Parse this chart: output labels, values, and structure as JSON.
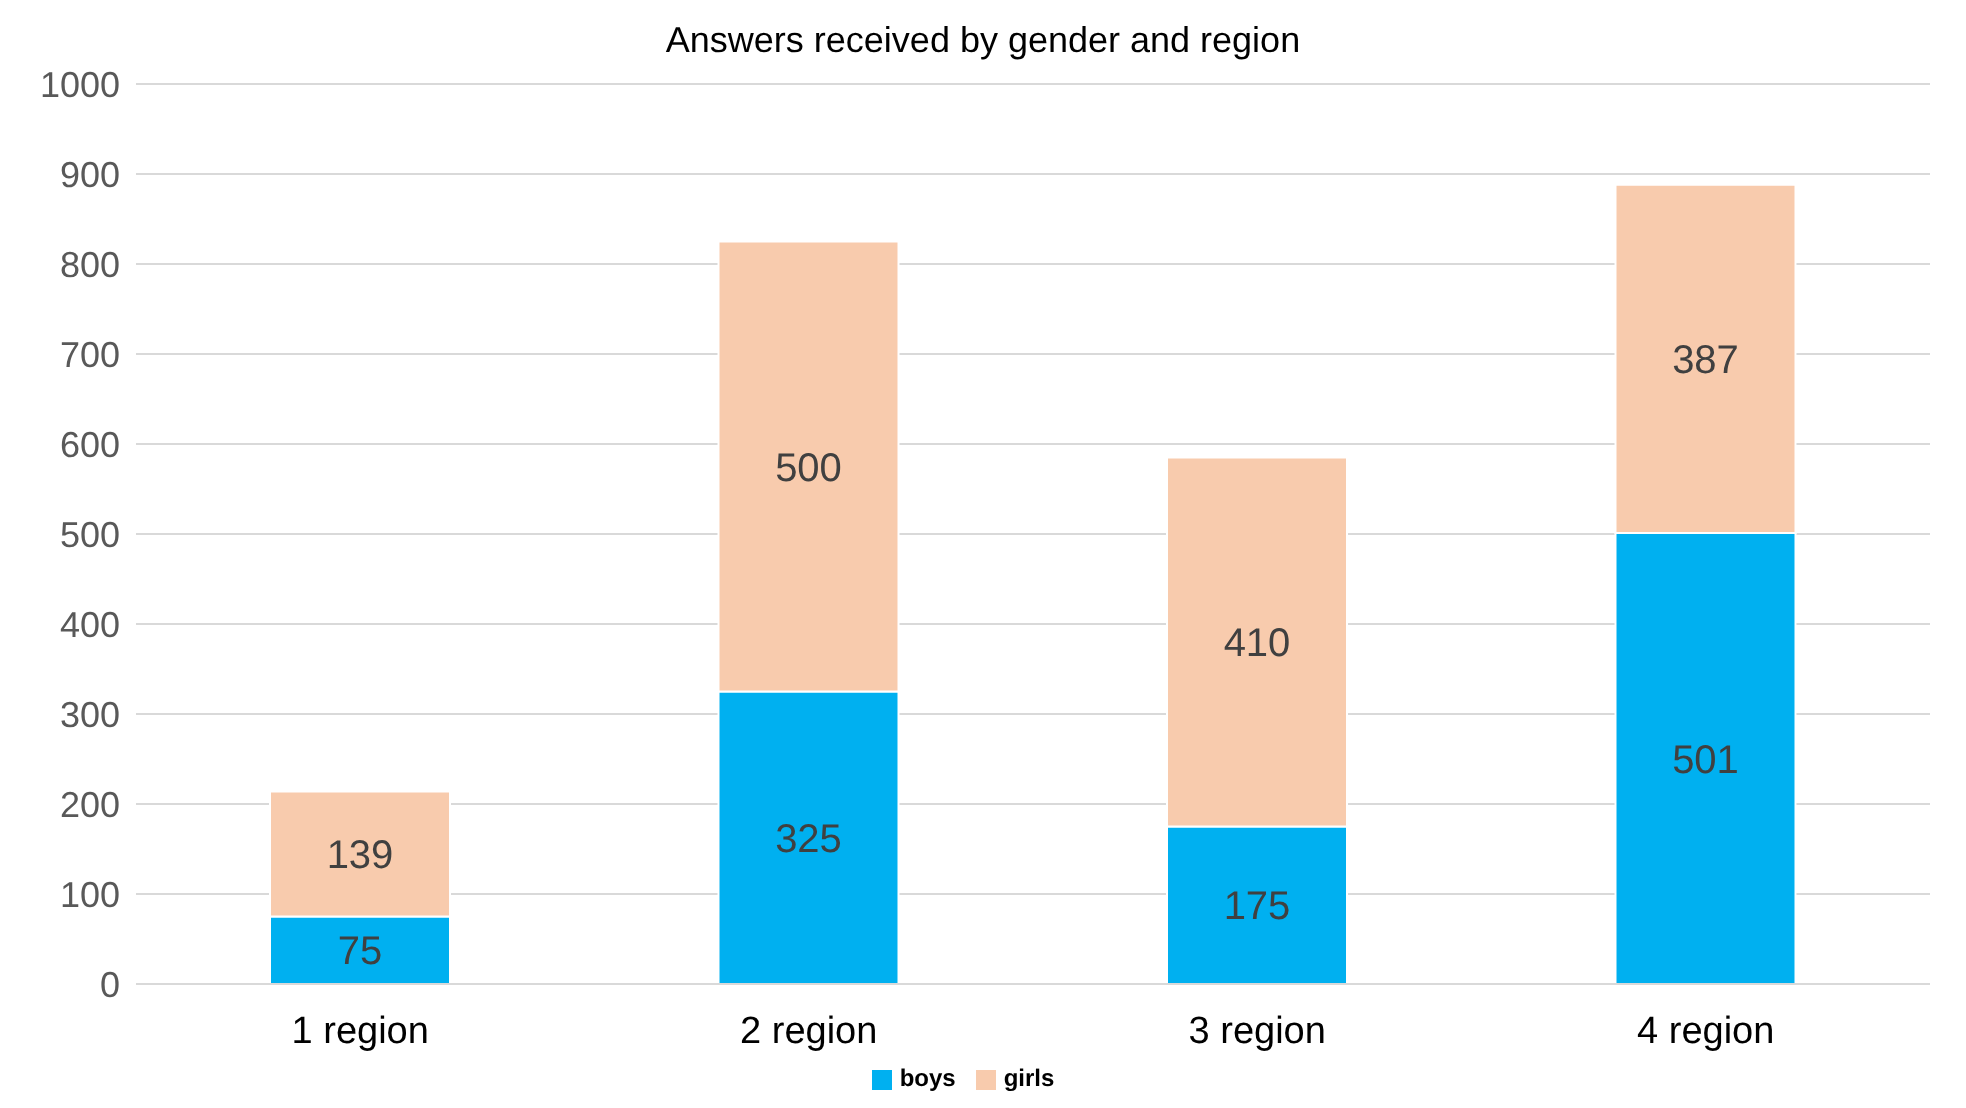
{
  "chart_data": {
    "type": "bar",
    "title": "Answers received by gender and region",
    "categories": [
      "1 region",
      "2 region",
      "3 region",
      "4 region"
    ],
    "series": [
      {
        "name": "boys",
        "color": "#00b0f0",
        "values": [
          75,
          325,
          175,
          501
        ]
      },
      {
        "name": "girls",
        "color": "#f8cbad",
        "values": [
          139,
          500,
          410,
          387
        ]
      }
    ],
    "stacked": true,
    "data_labels": true,
    "ylim": [
      0,
      1000
    ],
    "yticks": [
      0,
      100,
      200,
      300,
      400,
      500,
      600,
      700,
      800,
      900,
      1000
    ],
    "grid": "y",
    "legend": "bottom"
  }
}
